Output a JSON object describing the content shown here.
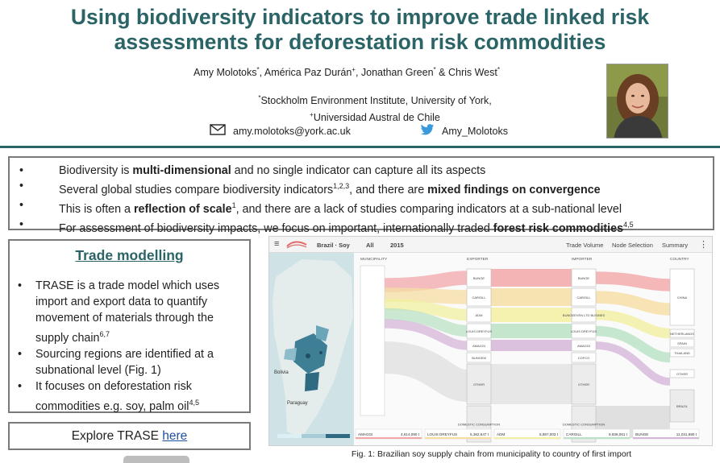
{
  "header": {
    "title_line1": "Using biodiversity indicators to improve trade linked risk",
    "title_line2": "assessments for deforestation risk commodities",
    "authors": [
      {
        "name": "Amy Molotoks",
        "mark": "*",
        "sep": ", "
      },
      {
        "name": "América Paz Durán",
        "mark": "+",
        "sep": ", "
      },
      {
        "name": "Jonathan Green",
        "mark": "*",
        "sep": " & "
      },
      {
        "name": "Chris West",
        "mark": "*",
        "sep": ""
      }
    ],
    "affiliation1_mark": "*",
    "affiliation1": "Stockholm Environment Institute, University of York,",
    "affiliation2_mark": "+",
    "affiliation2": "Universidad Austral de Chile",
    "email": "amy.molotoks@york.ac.uk",
    "twitter": "Amy_Molotoks",
    "colors": {
      "title": "#2b6466",
      "rule": "#2b6466"
    }
  },
  "summary": {
    "bullet_symbol": "•",
    "b1_pre": "Biodiversity is ",
    "b1_bold": "multi-dimensional",
    "b1_post": " and no single indicator can capture all its aspects",
    "b2_pre": "Several global studies compare biodiversity indicators",
    "b2_sup": "1,2,3",
    "b2_mid": ", and there are ",
    "b2_bold": "mixed findings on convergence",
    "b3_pre": "This is often a ",
    "b3_bold": "reflection of scale",
    "b3_sup": "1",
    "b3_post": ", and there are a lack of studies comparing indicators at a sub-national level",
    "b4_pre": "For assessment of biodiversity impacts, we focus on important, internationally traded ",
    "b4_bold": "forest risk commodities",
    "b4_sup": "4,5"
  },
  "trade": {
    "heading": "Trade modelling",
    "i1": "TRASE is a trade model which uses import and export data to quantify movement of materials through the supply chain",
    "i1_sup": "6,7",
    "i2": "Sourcing regions are identified at a subnational level (Fig. 1)",
    "i3": "It focuses on deforestation risk commodities e.g. soy, palm oil",
    "i3_sup": "4,5"
  },
  "explore": {
    "text": "Explore TRASE ",
    "link": "here"
  },
  "figure": {
    "caption": "Fig. 1: Brazilian soy supply chain from municipality to country of first import",
    "topbar": {
      "country_commodity": "Brazil · Soy",
      "filter": "All",
      "year": "2015",
      "trade_volume": "Trade Volume",
      "node_selection": "Node Selection",
      "summary": "Summary"
    },
    "columns": {
      "municipality": "MUNICIPALITY",
      "exporter": "EXPORTER",
      "importer": "IMPORTER",
      "country": "COUNTRY"
    },
    "exporters": [
      "BUNGE",
      "CARGILL",
      "ADM",
      "LOUIS DREYFUS",
      "AMAGGI",
      "BUNGEM",
      "OTHER",
      "DOMESTIC CONSUMPTION"
    ],
    "importers": [
      "BUNGE",
      "CARGILL",
      "BUNGEEVEN LTD BUSINES",
      "LOUIS DREYFUS",
      "AMAGGI",
      "COFCO",
      "OTHER",
      "DOMESTIC CONSUMPTION"
    ],
    "countries": [
      "CHINA",
      "NETHERLANDS",
      "SPAIN",
      "THAILAND",
      "OTHER",
      "BRAZIL"
    ],
    "map_labels": {
      "bolivia": "Bolivia",
      "paraguay": "Paraguay"
    },
    "bottom_chips": [
      {
        "name": "AMAGGI",
        "value": "4,614,090 t"
      },
      {
        "name": "LOUIS DREYFUS",
        "value": "5,382,647 t"
      },
      {
        "name": "ADM",
        "value": "6,887,003 t"
      },
      {
        "name": "CARGILL",
        "value": "9,936,061 t"
      },
      {
        "name": "BUNGE",
        "value": "11,031,680 t"
      }
    ]
  }
}
